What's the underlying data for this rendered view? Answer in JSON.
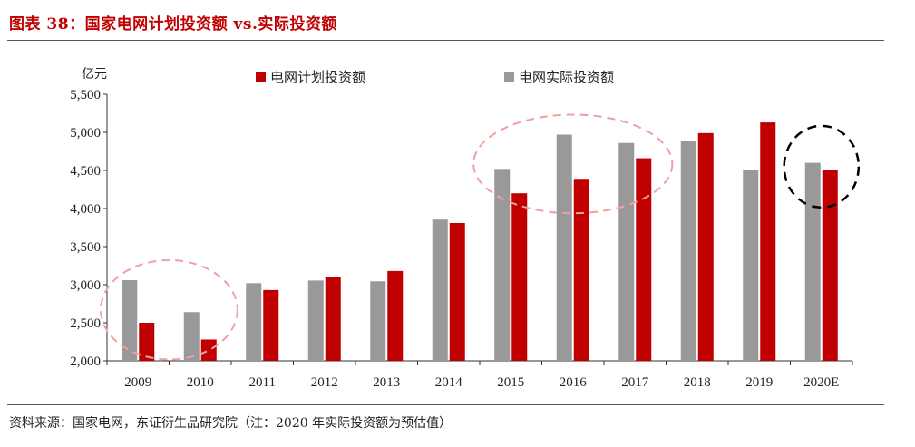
{
  "title": "图表 38：国家电网计划投资额 vs.实际投资额",
  "source": "资料来源：国家电网，东证衍生品研究院（注：2020 年实际投资额为预估值）",
  "chart_data": {
    "type": "bar",
    "ylabel": "亿元",
    "ylim": [
      2000,
      5500
    ],
    "yticks": [
      2000,
      2500,
      3000,
      3500,
      4000,
      4500,
      5000,
      5500
    ],
    "ytick_labels": [
      "2,000",
      "2,500",
      "3,000",
      "3,500",
      "4,000",
      "4,500",
      "5,000",
      "5,500"
    ],
    "categories": [
      "2009",
      "2010",
      "2011",
      "2012",
      "2013",
      "2014",
      "2015",
      "2016",
      "2017",
      "2018",
      "2019",
      "2020E"
    ],
    "series": [
      {
        "name": "电网实际投资额",
        "color": "#999999",
        "values": [
          3060,
          2640,
          3020,
          3055,
          3045,
          3855,
          4520,
          4970,
          4860,
          4890,
          4505,
          4600
        ]
      },
      {
        "name": "电网计划投资额",
        "color": "#c00000",
        "values": [
          2500,
          2280,
          2930,
          3100,
          3180,
          3810,
          4200,
          4390,
          4660,
          4990,
          5130,
          4500
        ]
      }
    ],
    "legend_order": [
      "电网计划投资额",
      "电网实际投资额"
    ],
    "legend_position": "top",
    "grid": false,
    "annotations": [
      {
        "type": "ellipse",
        "style": "dashed",
        "color": "#f0a0a0",
        "around": [
          "2009",
          "2010"
        ]
      },
      {
        "type": "ellipse",
        "style": "dashed",
        "color": "#f0a0a0",
        "around": [
          "2015",
          "2016",
          "2017"
        ]
      },
      {
        "type": "ellipse",
        "style": "dashed",
        "color": "#000000",
        "around": [
          "2020E"
        ]
      }
    ]
  }
}
